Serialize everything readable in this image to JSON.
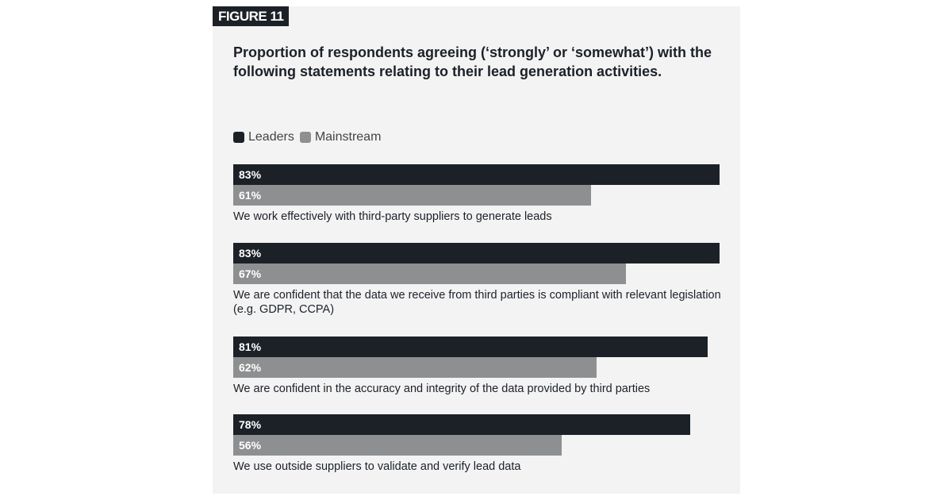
{
  "figure_label": "FIGURE 11",
  "colors": {
    "leaders": "#1c2128",
    "mainstream": "#8e8f91",
    "background": "#f3f3f3"
  },
  "chart_data": {
    "type": "bar",
    "orientation": "horizontal",
    "title": "Proportion of respondents agreeing (‘strongly’ or ‘somewhat’) with the following statements relating to their lead generation activities.",
    "legend_position": "top-left",
    "grid": false,
    "categories": [
      "We work effectively with third-party suppliers to generate leads",
      "We are confident that the data we receive from third parties is compliant with relevant legislation (e.g. GDPR, CCPA)",
      "We are confident in the accuracy and integrity of the data provided by third parties",
      "We use outside suppliers to validate and verify lead data"
    ],
    "series": [
      {
        "name": "Leaders",
        "values": [
          83,
          83,
          81,
          78
        ],
        "labels": [
          "83%",
          "83%",
          "81%",
          "78%"
        ]
      },
      {
        "name": "Mainstream",
        "values": [
          61,
          67,
          62,
          56
        ],
        "labels": [
          "61%",
          "67%",
          "62%",
          "56%"
        ]
      }
    ],
    "unit": "%"
  }
}
